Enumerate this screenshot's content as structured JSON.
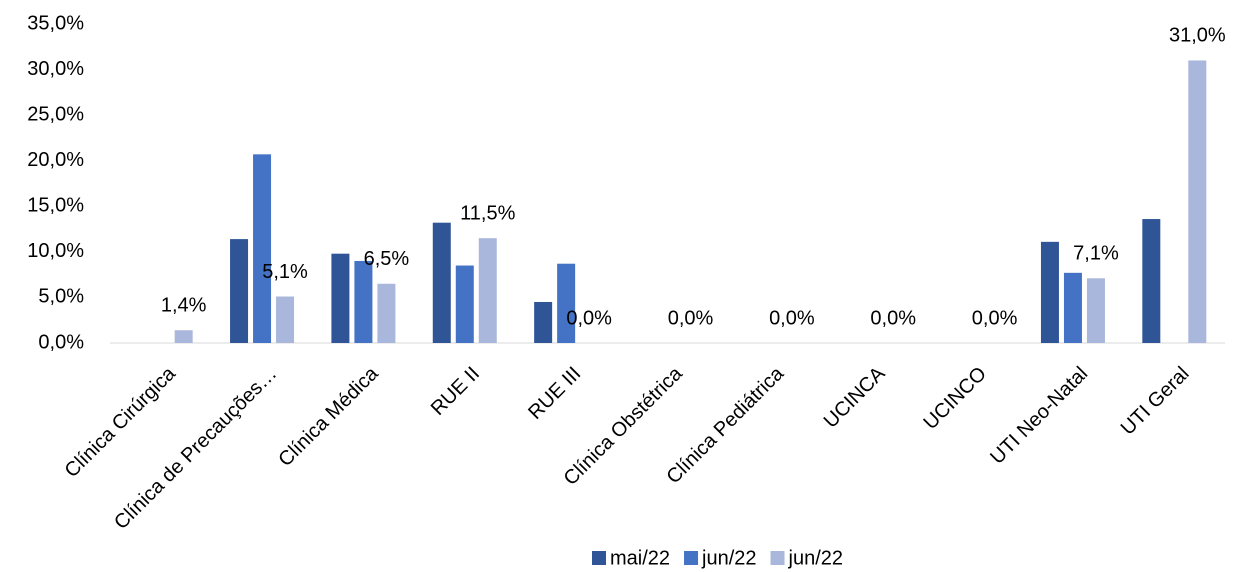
{
  "chart_data": {
    "type": "bar",
    "categories": [
      "Clínica Cirúrgica",
      "Clínica de Precauções…",
      "Clínica Médica",
      "RUE II",
      "RUE III",
      "Clínica Obstétrica",
      "Clínica Pediátrica",
      "UCINCA",
      "UCINCO",
      "UTI Neo-Natal",
      "UTI Geral"
    ],
    "series": [
      {
        "name": "mai/22",
        "color": "#2f5597",
        "values": [
          0,
          11.4,
          9.8,
          13.2,
          4.5,
          0,
          0,
          0,
          0,
          11.1,
          13.6
        ]
      },
      {
        "name": "jun/22",
        "color": "#4472c4",
        "values": [
          0,
          20.7,
          9.0,
          8.5,
          8.7,
          0,
          0,
          0,
          0,
          7.7,
          0
        ]
      },
      {
        "name": "jun/22",
        "color": "#a9b7dd",
        "values": [
          1.4,
          5.1,
          6.5,
          11.5,
          0,
          0,
          0,
          0,
          0,
          7.1,
          31.0
        ],
        "value_labels": [
          "1,4%",
          "5,1%",
          "6,5%",
          "11,5%",
          "0,0%",
          "0,0%",
          "0,0%",
          "0,0%",
          "0,0%",
          "7,1%",
          "31,0%"
        ]
      }
    ],
    "ylim": [
      0,
      35
    ],
    "yticks": [
      {
        "value": 0,
        "label": "0,0%"
      },
      {
        "value": 5,
        "label": "5,0%"
      },
      {
        "value": 10,
        "label": "10,0%"
      },
      {
        "value": 15,
        "label": "15,0%"
      },
      {
        "value": 20,
        "label": "20,0%"
      },
      {
        "value": 25,
        "label": "25,0%"
      },
      {
        "value": 30,
        "label": "30,0%"
      },
      {
        "value": 35,
        "label": "35,0%"
      }
    ],
    "grid": false,
    "legend": "bottom"
  }
}
